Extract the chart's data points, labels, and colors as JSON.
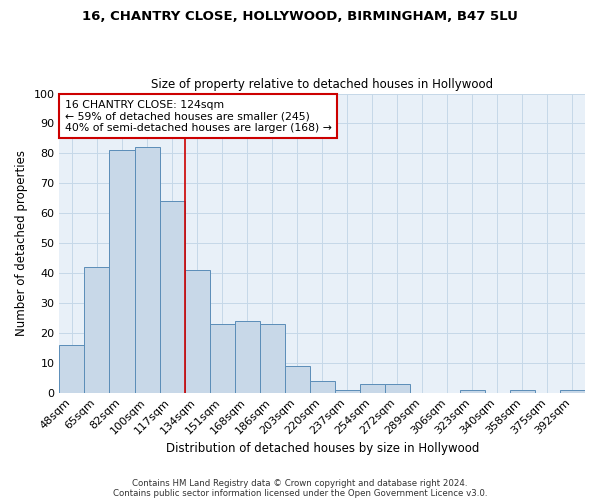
{
  "title1": "16, CHANTRY CLOSE, HOLLYWOOD, BIRMINGHAM, B47 5LU",
  "title2": "Size of property relative to detached houses in Hollywood",
  "xlabel": "Distribution of detached houses by size in Hollywood",
  "ylabel": "Number of detached properties",
  "bar_labels": [
    "48sqm",
    "65sqm",
    "82sqm",
    "100sqm",
    "117sqm",
    "134sqm",
    "151sqm",
    "168sqm",
    "186sqm",
    "203sqm",
    "220sqm",
    "237sqm",
    "254sqm",
    "272sqm",
    "289sqm",
    "306sqm",
    "323sqm",
    "340sqm",
    "358sqm",
    "375sqm",
    "392sqm"
  ],
  "bar_values": [
    16,
    42,
    81,
    82,
    64,
    41,
    23,
    24,
    23,
    9,
    4,
    1,
    3,
    3,
    0,
    0,
    1,
    0,
    1,
    0,
    1
  ],
  "bar_color": "#c8d8e8",
  "bar_edge_color": "#5b8db8",
  "ylim": [
    0,
    100
  ],
  "vline_x_index": 4.5,
  "vline_color": "#cc0000",
  "annotation_title": "16 CHANTRY CLOSE: 124sqm",
  "annotation_line1": "← 59% of detached houses are smaller (245)",
  "annotation_line2": "40% of semi-detached houses are larger (168) →",
  "annotation_box_color": "white",
  "annotation_box_edge": "#cc0000",
  "footer1": "Contains HM Land Registry data © Crown copyright and database right 2024.",
  "footer2": "Contains public sector information licensed under the Open Government Licence v3.0.",
  "grid_color": "#c5d8e8",
  "background_color": "#e8f0f8"
}
